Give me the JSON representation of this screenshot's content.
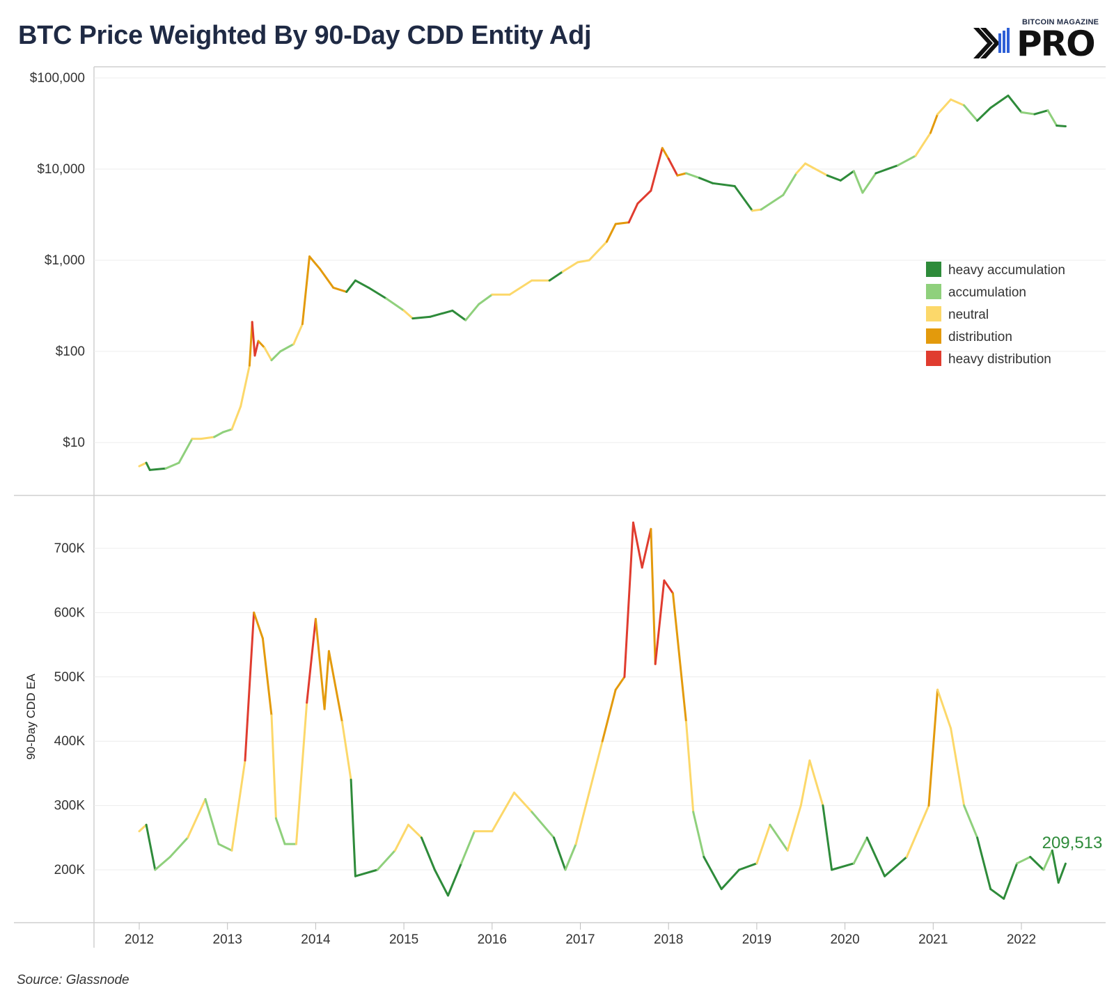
{
  "title": "BTC Price Weighted By 90-Day CDD Entity Adj",
  "logo": {
    "top_text": "BITCOIN MAGAZINE",
    "main_text": "PRO"
  },
  "source": "Source: Glassnode",
  "colors": {
    "heavy accumulation": "#2e8b3a",
    "accumulation": "#8fd07c",
    "neutral": "#fcd86a",
    "distribution": "#e39a0c",
    "heavy distribution": "#e03c2f"
  },
  "chart_data": [
    {
      "type": "line",
      "scale": "log",
      "y_ticks": [
        10,
        100,
        1000,
        10000,
        100000
      ],
      "y_tick_labels": [
        "$10",
        "$100",
        "$1,000",
        "$10,000",
        "$100,000"
      ],
      "x_ticks": [
        2012,
        2013,
        2014,
        2015,
        2016,
        2017,
        2018,
        2019,
        2020,
        2021,
        2022
      ],
      "legend": {
        "placement": "right",
        "entries": [
          "heavy accumulation",
          "accumulation",
          "neutral",
          "distribution",
          "heavy distribution"
        ]
      },
      "points": [
        [
          2012.0,
          5.5,
          "neutral"
        ],
        [
          2012.08,
          6,
          "neutral"
        ],
        [
          2012.12,
          5,
          "heavy accumulation"
        ],
        [
          2012.3,
          5.2,
          "heavy accumulation"
        ],
        [
          2012.45,
          6,
          "accumulation"
        ],
        [
          2012.6,
          11,
          "accumulation"
        ],
        [
          2012.7,
          11,
          "neutral"
        ],
        [
          2012.85,
          11.5,
          "neutral"
        ],
        [
          2012.95,
          13,
          "accumulation"
        ],
        [
          2013.05,
          14,
          "accumulation"
        ],
        [
          2013.15,
          25,
          "neutral"
        ],
        [
          2013.25,
          70,
          "neutral"
        ],
        [
          2013.28,
          210,
          "distribution"
        ],
        [
          2013.31,
          90,
          "heavy distribution"
        ],
        [
          2013.35,
          130,
          "heavy distribution"
        ],
        [
          2013.42,
          110,
          "distribution"
        ],
        [
          2013.5,
          80,
          "neutral"
        ],
        [
          2013.6,
          100,
          "accumulation"
        ],
        [
          2013.75,
          120,
          "accumulation"
        ],
        [
          2013.85,
          200,
          "neutral"
        ],
        [
          2013.93,
          1100,
          "distribution"
        ],
        [
          2014.05,
          800,
          "distribution"
        ],
        [
          2014.2,
          500,
          "distribution"
        ],
        [
          2014.35,
          450,
          "distribution"
        ],
        [
          2014.45,
          600,
          "heavy accumulation"
        ],
        [
          2014.6,
          500,
          "heavy accumulation"
        ],
        [
          2014.8,
          380,
          "heavy accumulation"
        ],
        [
          2015.0,
          280,
          "accumulation"
        ],
        [
          2015.1,
          230,
          "neutral"
        ],
        [
          2015.3,
          240,
          "heavy accumulation"
        ],
        [
          2015.55,
          280,
          "heavy accumulation"
        ],
        [
          2015.7,
          220,
          "heavy accumulation"
        ],
        [
          2015.85,
          330,
          "accumulation"
        ],
        [
          2016.0,
          420,
          "accumulation"
        ],
        [
          2016.2,
          420,
          "neutral"
        ],
        [
          2016.45,
          600,
          "neutral"
        ],
        [
          2016.65,
          600,
          "neutral"
        ],
        [
          2016.8,
          750,
          "heavy accumulation"
        ],
        [
          2016.97,
          950,
          "neutral"
        ],
        [
          2017.1,
          1000,
          "neutral"
        ],
        [
          2017.3,
          1600,
          "neutral"
        ],
        [
          2017.4,
          2500,
          "distribution"
        ],
        [
          2017.55,
          2600,
          "distribution"
        ],
        [
          2017.65,
          4200,
          "heavy distribution"
        ],
        [
          2017.8,
          5800,
          "heavy distribution"
        ],
        [
          2017.93,
          17000,
          "heavy distribution"
        ],
        [
          2018.0,
          13000,
          "distribution"
        ],
        [
          2018.1,
          8500,
          "heavy distribution"
        ],
        [
          2018.2,
          9000,
          "distribution"
        ],
        [
          2018.35,
          8000,
          "accumulation"
        ],
        [
          2018.5,
          7000,
          "heavy accumulation"
        ],
        [
          2018.75,
          6500,
          "heavy accumulation"
        ],
        [
          2018.95,
          3500,
          "heavy accumulation"
        ],
        [
          2019.05,
          3600,
          "neutral"
        ],
        [
          2019.3,
          5200,
          "accumulation"
        ],
        [
          2019.45,
          9000,
          "accumulation"
        ],
        [
          2019.55,
          11500,
          "neutral"
        ],
        [
          2019.8,
          8500,
          "neutral"
        ],
        [
          2019.95,
          7500,
          "heavy accumulation"
        ],
        [
          2020.1,
          9500,
          "heavy accumulation"
        ],
        [
          2020.2,
          5500,
          "accumulation"
        ],
        [
          2020.35,
          9000,
          "accumulation"
        ],
        [
          2020.6,
          11000,
          "heavy accumulation"
        ],
        [
          2020.8,
          14000,
          "accumulation"
        ],
        [
          2020.97,
          25000,
          "neutral"
        ],
        [
          2021.05,
          40000,
          "distribution"
        ],
        [
          2021.2,
          58000,
          "neutral"
        ],
        [
          2021.35,
          50000,
          "neutral"
        ],
        [
          2021.5,
          34000,
          "accumulation"
        ],
        [
          2021.65,
          47000,
          "heavy accumulation"
        ],
        [
          2021.85,
          64000,
          "heavy accumulation"
        ],
        [
          2022.0,
          42000,
          "heavy accumulation"
        ],
        [
          2022.15,
          40000,
          "accumulation"
        ],
        [
          2022.3,
          44000,
          "heavy accumulation"
        ],
        [
          2022.4,
          30000,
          "accumulation"
        ],
        [
          2022.5,
          29500,
          "heavy accumulation"
        ]
      ]
    },
    {
      "type": "line",
      "ylabel": "90-Day CDD EA",
      "y_ticks": [
        200000,
        300000,
        400000,
        500000,
        600000,
        700000
      ],
      "y_tick_labels": [
        "200K",
        "300K",
        "400K",
        "500K",
        "600K",
        "700K"
      ],
      "ylim": [
        135000,
        780000
      ],
      "x_ticks": [
        2012,
        2013,
        2014,
        2015,
        2016,
        2017,
        2018,
        2019,
        2020,
        2021,
        2022
      ],
      "x_tick_labels": [
        "2012",
        "2013",
        "2014",
        "2015",
        "2016",
        "2017",
        "2018",
        "2019",
        "2020",
        "2021",
        "2022"
      ],
      "last_value_label": "209,513",
      "points": [
        [
          2012.0,
          260000,
          "neutral"
        ],
        [
          2012.08,
          270000,
          "neutral"
        ],
        [
          2012.18,
          200000,
          "heavy accumulation"
        ],
        [
          2012.35,
          220000,
          "accumulation"
        ],
        [
          2012.55,
          250000,
          "accumulation"
        ],
        [
          2012.75,
          310000,
          "neutral"
        ],
        [
          2012.9,
          240000,
          "accumulation"
        ],
        [
          2013.05,
          230000,
          "accumulation"
        ],
        [
          2013.2,
          370000,
          "neutral"
        ],
        [
          2013.3,
          600000,
          "heavy distribution"
        ],
        [
          2013.4,
          560000,
          "distribution"
        ],
        [
          2013.5,
          440000,
          "distribution"
        ],
        [
          2013.55,
          280000,
          "neutral"
        ],
        [
          2013.65,
          240000,
          "accumulation"
        ],
        [
          2013.78,
          240000,
          "accumulation"
        ],
        [
          2013.9,
          460000,
          "neutral"
        ],
        [
          2014.0,
          590000,
          "heavy distribution"
        ],
        [
          2014.1,
          450000,
          "distribution"
        ],
        [
          2014.15,
          540000,
          "distribution"
        ],
        [
          2014.3,
          430000,
          "distribution"
        ],
        [
          2014.4,
          340000,
          "neutral"
        ],
        [
          2014.45,
          190000,
          "heavy accumulation"
        ],
        [
          2014.7,
          200000,
          "heavy accumulation"
        ],
        [
          2014.9,
          230000,
          "accumulation"
        ],
        [
          2015.05,
          270000,
          "neutral"
        ],
        [
          2015.2,
          250000,
          "neutral"
        ],
        [
          2015.35,
          200000,
          "heavy accumulation"
        ],
        [
          2015.5,
          160000,
          "heavy accumulation"
        ],
        [
          2015.65,
          210000,
          "heavy accumulation"
        ],
        [
          2015.8,
          260000,
          "accumulation"
        ],
        [
          2016.0,
          260000,
          "neutral"
        ],
        [
          2016.25,
          320000,
          "neutral"
        ],
        [
          2016.45,
          290000,
          "neutral"
        ],
        [
          2016.7,
          250000,
          "accumulation"
        ],
        [
          2016.83,
          200000,
          "heavy accumulation"
        ],
        [
          2016.95,
          240000,
          "accumulation"
        ],
        [
          2017.1,
          320000,
          "neutral"
        ],
        [
          2017.25,
          400000,
          "neutral"
        ],
        [
          2017.4,
          480000,
          "distribution"
        ],
        [
          2017.5,
          500000,
          "distribution"
        ],
        [
          2017.6,
          740000,
          "heavy distribution"
        ],
        [
          2017.7,
          670000,
          "heavy distribution"
        ],
        [
          2017.8,
          730000,
          "heavy distribution"
        ],
        [
          2017.85,
          520000,
          "distribution"
        ],
        [
          2017.95,
          650000,
          "heavy distribution"
        ],
        [
          2018.05,
          630000,
          "heavy distribution"
        ],
        [
          2018.2,
          430000,
          "distribution"
        ],
        [
          2018.28,
          290000,
          "neutral"
        ],
        [
          2018.4,
          220000,
          "accumulation"
        ],
        [
          2018.6,
          170000,
          "heavy accumulation"
        ],
        [
          2018.8,
          200000,
          "heavy accumulation"
        ],
        [
          2019.0,
          210000,
          "heavy accumulation"
        ],
        [
          2019.15,
          270000,
          "neutral"
        ],
        [
          2019.35,
          230000,
          "accumulation"
        ],
        [
          2019.5,
          300000,
          "neutral"
        ],
        [
          2019.6,
          370000,
          "neutral"
        ],
        [
          2019.75,
          300000,
          "neutral"
        ],
        [
          2019.85,
          200000,
          "heavy accumulation"
        ],
        [
          2020.1,
          210000,
          "heavy accumulation"
        ],
        [
          2020.25,
          250000,
          "accumulation"
        ],
        [
          2020.45,
          190000,
          "heavy accumulation"
        ],
        [
          2020.7,
          220000,
          "heavy accumulation"
        ],
        [
          2020.95,
          300000,
          "neutral"
        ],
        [
          2021.05,
          480000,
          "distribution"
        ],
        [
          2021.2,
          420000,
          "neutral"
        ],
        [
          2021.35,
          300000,
          "neutral"
        ],
        [
          2021.5,
          250000,
          "accumulation"
        ],
        [
          2021.65,
          170000,
          "heavy accumulation"
        ],
        [
          2021.8,
          155000,
          "heavy accumulation"
        ],
        [
          2021.95,
          210000,
          "heavy accumulation"
        ],
        [
          2022.1,
          220000,
          "accumulation"
        ],
        [
          2022.25,
          200000,
          "heavy accumulation"
        ],
        [
          2022.35,
          230000,
          "accumulation"
        ],
        [
          2022.42,
          180000,
          "heavy accumulation"
        ],
        [
          2022.5,
          209513,
          "heavy accumulation"
        ]
      ]
    }
  ]
}
